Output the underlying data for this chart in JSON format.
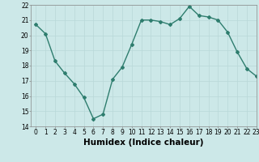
{
  "x": [
    0,
    1,
    2,
    3,
    4,
    5,
    6,
    7,
    8,
    9,
    10,
    11,
    12,
    13,
    14,
    15,
    16,
    17,
    18,
    19,
    20,
    21,
    22,
    23
  ],
  "y": [
    20.7,
    20.1,
    18.3,
    17.5,
    16.8,
    15.9,
    14.5,
    14.8,
    17.1,
    17.9,
    19.4,
    21.0,
    21.0,
    20.9,
    20.7,
    21.1,
    21.9,
    21.3,
    21.2,
    21.0,
    20.2,
    18.9,
    17.8,
    17.3
  ],
  "line_color": "#2e7d6e",
  "bg_color": "#cce8e8",
  "grid_color": "#b8d8d8",
  "xlabel": "Humidex (Indice chaleur)",
  "ylim": [
    14,
    22
  ],
  "xlim": [
    -0.5,
    23
  ],
  "yticks": [
    14,
    15,
    16,
    17,
    18,
    19,
    20,
    21,
    22
  ],
  "xticks": [
    0,
    1,
    2,
    3,
    4,
    5,
    6,
    7,
    8,
    9,
    10,
    11,
    12,
    13,
    14,
    15,
    16,
    17,
    18,
    19,
    20,
    21,
    22,
    23
  ],
  "tick_fontsize": 5.5,
  "xlabel_fontsize": 7.5,
  "marker": "D",
  "markersize": 2.0,
  "linewidth": 1.0
}
